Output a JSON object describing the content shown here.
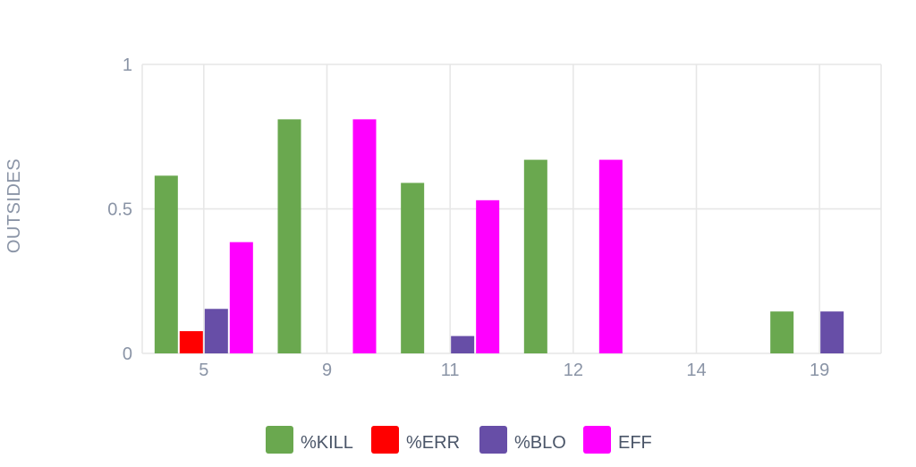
{
  "chart_data": {
    "type": "bar",
    "categories": [
      "5",
      "9",
      "11",
      "12",
      "14",
      "19"
    ],
    "ylabel": "OUTSIDES",
    "ylim": [
      0,
      1
    ],
    "yticks": [
      "0",
      "0.5",
      "1"
    ],
    "grid": true,
    "legend_position": "bottom",
    "series": [
      {
        "name": "%KILL",
        "color": "#6aa84f",
        "values": [
          0.615,
          0.81,
          0.59,
          0.67,
          0,
          0.145
        ]
      },
      {
        "name": "%ERR",
        "color": "#ff0000",
        "values": [
          0.077,
          0,
          0,
          0,
          0,
          0
        ]
      },
      {
        "name": "%BLO",
        "color": "#674ea7",
        "values": [
          0.154,
          0,
          0.06,
          0,
          0,
          0.145
        ]
      },
      {
        "name": "EFF",
        "color": "#ff00ff",
        "values": [
          0.385,
          0.81,
          0.53,
          0.67,
          0,
          0
        ]
      }
    ]
  }
}
